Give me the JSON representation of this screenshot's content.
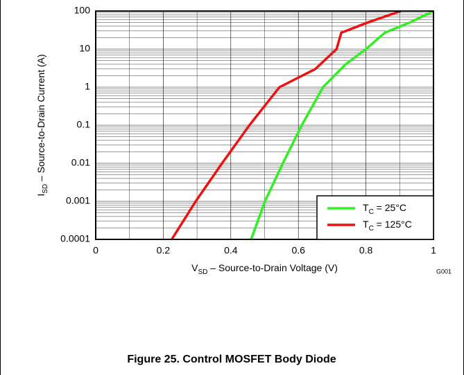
{
  "chart_data": {
    "type": "line",
    "figure_caption": "Figure 25. Control MOSFET Body Diode",
    "graph_id": "G001",
    "xlabel": {
      "symbol": "V",
      "sub": "SD",
      "text": " – Source-to-Drain Voltage (V)"
    },
    "ylabel": {
      "symbol": "I",
      "sub": "SD",
      "text": " – Source-to-Drain Current (A)"
    },
    "xlim": [
      0,
      1
    ],
    "xticks": [
      0,
      0.2,
      0.4,
      0.6,
      0.8,
      1
    ],
    "ylim": [
      0.0001,
      100
    ],
    "yticks": [
      0.0001,
      0.001,
      0.01,
      0.1,
      1,
      10,
      100
    ],
    "log_y": true,
    "grid": true,
    "minor_grid": true,
    "legend": "lower right",
    "series": [
      {
        "name": {
          "symbol": "T",
          "sub": "C",
          "text": " = 25°C"
        },
        "color": "#33ee22",
        "x": [
          0.46,
          0.501,
          0.554,
          0.61,
          0.673,
          0.74,
          0.8,
          0.856,
          0.93,
          1.0
        ],
        "values": [
          0.0001,
          0.001,
          0.01,
          0.1,
          1,
          4,
          10,
          27,
          50,
          100
        ]
      },
      {
        "name": {
          "symbol": "T",
          "sub": "C",
          "text": " = 125°C"
        },
        "color": "#ee1111",
        "x": [
          0.225,
          0.296,
          0.374,
          0.455,
          0.544,
          0.65,
          0.713,
          0.727,
          0.805,
          0.903
        ],
        "values": [
          0.0001,
          0.001,
          0.01,
          0.1,
          1,
          3,
          10,
          27,
          50,
          100
        ]
      }
    ]
  }
}
